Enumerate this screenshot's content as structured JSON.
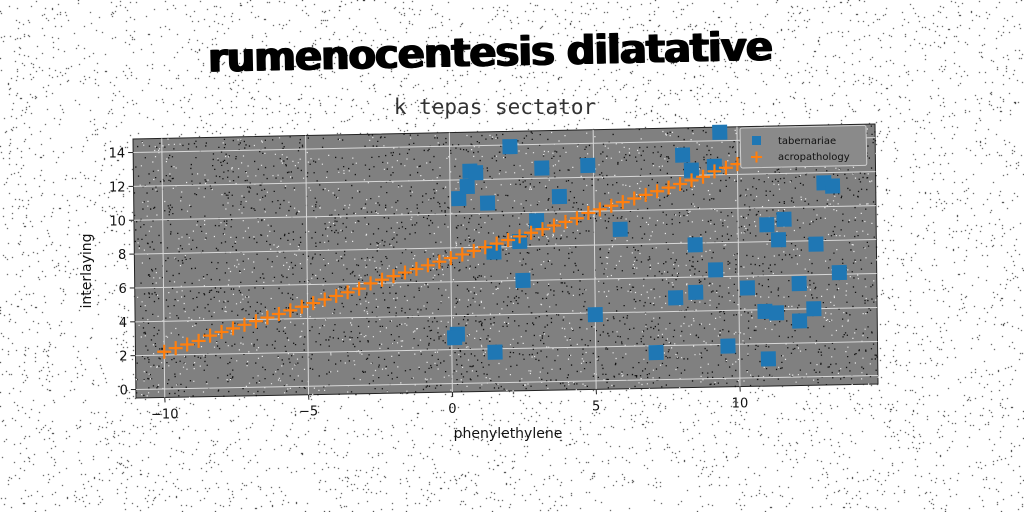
{
  "chart_data": {
    "type": "scatter",
    "title": "rumenocentesis dilatative",
    "subtitle": "k tepas sectator",
    "xlabel": "phenylethylene",
    "ylabel": "interlaying",
    "xlim": [
      -11,
      14.8
    ],
    "ylim": [
      -0.5,
      14.8
    ],
    "xticks": [
      -10,
      -5,
      0,
      5,
      10
    ],
    "xtick_labels": [
      "−10",
      "−5",
      "0",
      "5",
      "10"
    ],
    "yticks": [
      0,
      2,
      4,
      6,
      8,
      10,
      12,
      14
    ],
    "ytick_labels": [
      "0",
      "2",
      "4",
      "6",
      "8",
      "10",
      "12",
      "14"
    ],
    "grid": true,
    "legend_position": "top-right",
    "background": "#808080",
    "series": [
      {
        "name": "tabernariae",
        "marker": "square",
        "color": "#1f77b4",
        "points": [
          [
            0.2,
            2.9
          ],
          [
            0.1,
            2.7
          ],
          [
            0.3,
            10.9
          ],
          [
            0.6,
            11.6
          ],
          [
            0.7,
            12.5
          ],
          [
            0.9,
            12.4
          ],
          [
            1.3,
            10.6
          ],
          [
            1.5,
            7.7
          ],
          [
            1.5,
            1.8
          ],
          [
            2.1,
            13.9
          ],
          [
            2.4,
            8.3
          ],
          [
            2.5,
            6.0
          ],
          [
            3.0,
            9.5
          ],
          [
            3.2,
            12.6
          ],
          [
            3.8,
            10.9
          ],
          [
            4.8,
            12.7
          ],
          [
            5.0,
            3.9
          ],
          [
            5.9,
            8.9
          ],
          [
            7.1,
            1.6
          ],
          [
            7.8,
            4.8
          ],
          [
            8.1,
            13.2
          ],
          [
            8.4,
            12.3
          ],
          [
            8.5,
            5.1
          ],
          [
            8.5,
            7.9
          ],
          [
            9.2,
            6.4
          ],
          [
            9.4,
            14.5
          ],
          [
            9.2,
            12.5
          ],
          [
            9.6,
            1.9
          ],
          [
            10.3,
            5.3
          ],
          [
            10.9,
            3.9
          ],
          [
            11.0,
            9.0
          ],
          [
            11.3,
            3.8
          ],
          [
            11.4,
            8.1
          ],
          [
            11.6,
            9.3
          ],
          [
            11.0,
            1.1
          ],
          [
            12.1,
            5.5
          ],
          [
            12.1,
            3.3
          ],
          [
            12.6,
            4.0
          ],
          [
            12.7,
            7.8
          ],
          [
            13.0,
            11.4
          ],
          [
            13.3,
            11.2
          ],
          [
            13.5,
            6.1
          ]
        ]
      },
      {
        "name": "acropathology",
        "marker": "plus",
        "color": "#ff7f0e",
        "points": [
          [
            -10.0,
            2.2
          ],
          [
            -9.6,
            2.4
          ],
          [
            -9.2,
            2.6
          ],
          [
            -8.8,
            2.8
          ],
          [
            -8.4,
            3.1
          ],
          [
            -8.0,
            3.3
          ],
          [
            -7.6,
            3.5
          ],
          [
            -7.2,
            3.7
          ],
          [
            -6.8,
            3.9
          ],
          [
            -6.4,
            4.1
          ],
          [
            -6.0,
            4.3
          ],
          [
            -5.6,
            4.5
          ],
          [
            -5.2,
            4.7
          ],
          [
            -4.8,
            4.9
          ],
          [
            -4.4,
            5.1
          ],
          [
            -4.0,
            5.3
          ],
          [
            -3.6,
            5.5
          ],
          [
            -3.2,
            5.7
          ],
          [
            -2.8,
            6.0
          ],
          [
            -2.4,
            6.2
          ],
          [
            -2.0,
            6.4
          ],
          [
            -1.6,
            6.6
          ],
          [
            -1.2,
            6.8
          ],
          [
            -0.8,
            7.0
          ],
          [
            -0.4,
            7.2
          ],
          [
            0.0,
            7.4
          ],
          [
            0.4,
            7.6
          ],
          [
            0.8,
            7.8
          ],
          [
            1.2,
            8.0
          ],
          [
            1.6,
            8.2
          ],
          [
            2.0,
            8.4
          ],
          [
            2.4,
            8.6
          ],
          [
            2.8,
            8.8
          ],
          [
            3.2,
            9.0
          ],
          [
            3.6,
            9.2
          ],
          [
            4.0,
            9.4
          ],
          [
            4.4,
            9.6
          ],
          [
            4.8,
            9.9
          ],
          [
            5.2,
            10.1
          ],
          [
            5.6,
            10.3
          ],
          [
            6.0,
            10.5
          ],
          [
            6.4,
            10.7
          ],
          [
            6.8,
            10.9
          ],
          [
            7.2,
            11.1
          ],
          [
            7.6,
            11.3
          ],
          [
            8.0,
            11.5
          ],
          [
            8.4,
            11.7
          ],
          [
            8.8,
            11.9
          ],
          [
            9.2,
            12.2
          ],
          [
            9.6,
            12.4
          ],
          [
            10.0,
            12.6
          ]
        ]
      }
    ]
  }
}
